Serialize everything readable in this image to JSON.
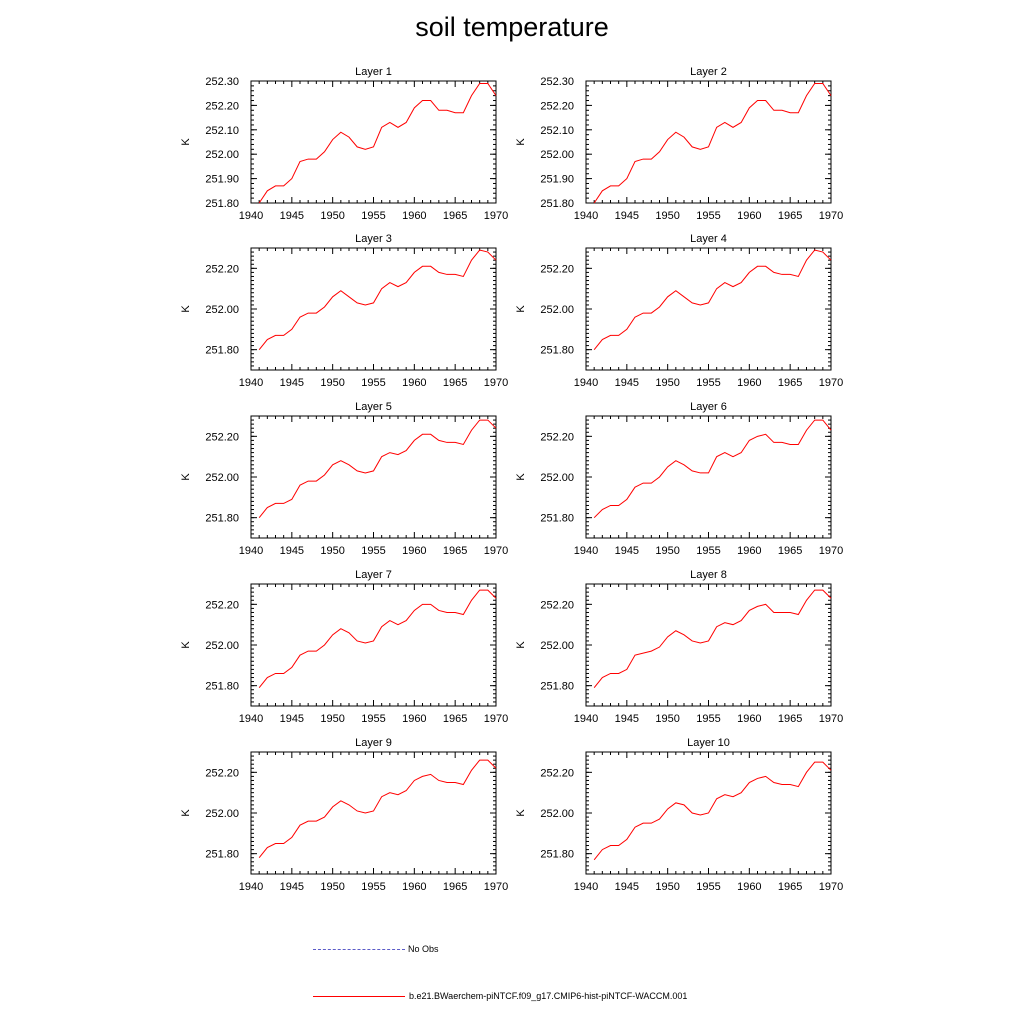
{
  "title": "soil temperature",
  "colors": {
    "model_line": "#ff0000",
    "obs_line": "#5b5bc8",
    "axis": "#000000"
  },
  "legend": {
    "obs_label": "No Obs",
    "model_label": "b.e21.BWaerchem-piNTCF.f09_g17.CMIP6-hist-piNTCF-WACCM.001"
  },
  "chart_data": [
    {
      "type": "line",
      "title": "Layer 1",
      "xlabel": "",
      "ylabel": "K",
      "xlim": [
        1940,
        1970
      ],
      "ylim": [
        251.8,
        252.3
      ],
      "yticks": [
        "251.80",
        "251.90",
        "252.00",
        "252.10",
        "252.20",
        "252.30"
      ],
      "xticks": [
        "1940",
        "1945",
        "1950",
        "1955",
        "1960",
        "1965",
        "1970"
      ],
      "x": [
        1941,
        1942,
        1943,
        1944,
        1945,
        1946,
        1947,
        1948,
        1949,
        1950,
        1951,
        1952,
        1953,
        1954,
        1955,
        1956,
        1957,
        1958,
        1959,
        1960,
        1961,
        1962,
        1963,
        1964,
        1965,
        1966,
        1967,
        1968,
        1969,
        1970
      ],
      "series": [
        {
          "values": [
            251.8,
            251.85,
            251.87,
            251.87,
            251.9,
            251.97,
            251.98,
            251.98,
            252.01,
            252.06,
            252.09,
            252.07,
            252.03,
            252.02,
            252.03,
            252.11,
            252.13,
            252.11,
            252.13,
            252.19,
            252.22,
            252.22,
            252.18,
            252.18,
            252.17,
            252.17,
            252.24,
            252.29,
            252.29,
            252.24
          ]
        }
      ]
    },
    {
      "type": "line",
      "title": "Layer 2",
      "xlabel": "",
      "ylabel": "K",
      "xlim": [
        1940,
        1970
      ],
      "ylim": [
        251.8,
        252.3
      ],
      "yticks": [
        "251.80",
        "251.90",
        "252.00",
        "252.10",
        "252.20",
        "252.30"
      ],
      "xticks": [
        "1940",
        "1945",
        "1950",
        "1955",
        "1960",
        "1965",
        "1970"
      ],
      "x": [
        1941,
        1942,
        1943,
        1944,
        1945,
        1946,
        1947,
        1948,
        1949,
        1950,
        1951,
        1952,
        1953,
        1954,
        1955,
        1956,
        1957,
        1958,
        1959,
        1960,
        1961,
        1962,
        1963,
        1964,
        1965,
        1966,
        1967,
        1968,
        1969,
        1970
      ],
      "series": [
        {
          "values": [
            251.8,
            251.85,
            251.87,
            251.87,
            251.9,
            251.97,
            251.98,
            251.98,
            252.01,
            252.06,
            252.09,
            252.07,
            252.03,
            252.02,
            252.03,
            252.11,
            252.13,
            252.11,
            252.13,
            252.19,
            252.22,
            252.22,
            252.18,
            252.18,
            252.17,
            252.17,
            252.24,
            252.29,
            252.29,
            252.24
          ]
        }
      ]
    },
    {
      "type": "line",
      "title": "Layer 3",
      "xlabel": "",
      "ylabel": "K",
      "xlim": [
        1940,
        1970
      ],
      "ylim": [
        251.7,
        252.3
      ],
      "yticks": [
        "251.80",
        "252.00",
        "252.20"
      ],
      "xticks": [
        "1940",
        "1945",
        "1950",
        "1955",
        "1960",
        "1965",
        "1970"
      ],
      "x": [
        1941,
        1942,
        1943,
        1944,
        1945,
        1946,
        1947,
        1948,
        1949,
        1950,
        1951,
        1952,
        1953,
        1954,
        1955,
        1956,
        1957,
        1958,
        1959,
        1960,
        1961,
        1962,
        1963,
        1964,
        1965,
        1966,
        1967,
        1968,
        1969,
        1970
      ],
      "series": [
        {
          "values": [
            251.8,
            251.85,
            251.87,
            251.87,
            251.9,
            251.96,
            251.98,
            251.98,
            252.01,
            252.06,
            252.09,
            252.06,
            252.03,
            252.02,
            252.03,
            252.1,
            252.13,
            252.11,
            252.13,
            252.18,
            252.21,
            252.21,
            252.18,
            252.17,
            252.17,
            252.16,
            252.24,
            252.29,
            252.28,
            252.24
          ]
        }
      ]
    },
    {
      "type": "line",
      "title": "Layer 4",
      "xlabel": "",
      "ylabel": "K",
      "xlim": [
        1940,
        1970
      ],
      "ylim": [
        251.7,
        252.3
      ],
      "yticks": [
        "251.80",
        "252.00",
        "252.20"
      ],
      "xticks": [
        "1940",
        "1945",
        "1950",
        "1955",
        "1960",
        "1965",
        "1970"
      ],
      "x": [
        1941,
        1942,
        1943,
        1944,
        1945,
        1946,
        1947,
        1948,
        1949,
        1950,
        1951,
        1952,
        1953,
        1954,
        1955,
        1956,
        1957,
        1958,
        1959,
        1960,
        1961,
        1962,
        1963,
        1964,
        1965,
        1966,
        1967,
        1968,
        1969,
        1970
      ],
      "series": [
        {
          "values": [
            251.8,
            251.85,
            251.87,
            251.87,
            251.9,
            251.96,
            251.98,
            251.98,
            252.01,
            252.06,
            252.09,
            252.06,
            252.03,
            252.02,
            252.03,
            252.1,
            252.13,
            252.11,
            252.13,
            252.18,
            252.21,
            252.21,
            252.18,
            252.17,
            252.17,
            252.16,
            252.24,
            252.29,
            252.28,
            252.24
          ]
        }
      ]
    },
    {
      "type": "line",
      "title": "Layer 5",
      "xlabel": "",
      "ylabel": "K",
      "xlim": [
        1940,
        1970
      ],
      "ylim": [
        251.7,
        252.3
      ],
      "yticks": [
        "251.80",
        "252.00",
        "252.20"
      ],
      "xticks": [
        "1940",
        "1945",
        "1950",
        "1955",
        "1960",
        "1965",
        "1970"
      ],
      "x": [
        1941,
        1942,
        1943,
        1944,
        1945,
        1946,
        1947,
        1948,
        1949,
        1950,
        1951,
        1952,
        1953,
        1954,
        1955,
        1956,
        1957,
        1958,
        1959,
        1960,
        1961,
        1962,
        1963,
        1964,
        1965,
        1966,
        1967,
        1968,
        1969,
        1970
      ],
      "series": [
        {
          "values": [
            251.8,
            251.85,
            251.87,
            251.87,
            251.89,
            251.96,
            251.98,
            251.98,
            252.01,
            252.06,
            252.08,
            252.06,
            252.03,
            252.02,
            252.03,
            252.1,
            252.12,
            252.11,
            252.13,
            252.18,
            252.21,
            252.21,
            252.18,
            252.17,
            252.17,
            252.16,
            252.23,
            252.28,
            252.28,
            252.24
          ]
        }
      ]
    },
    {
      "type": "line",
      "title": "Layer 6",
      "xlabel": "",
      "ylabel": "K",
      "xlim": [
        1940,
        1970
      ],
      "ylim": [
        251.7,
        252.3
      ],
      "yticks": [
        "251.80",
        "252.00",
        "252.20"
      ],
      "xticks": [
        "1940",
        "1945",
        "1950",
        "1955",
        "1960",
        "1965",
        "1970"
      ],
      "x": [
        1941,
        1942,
        1943,
        1944,
        1945,
        1946,
        1947,
        1948,
        1949,
        1950,
        1951,
        1952,
        1953,
        1954,
        1955,
        1956,
        1957,
        1958,
        1959,
        1960,
        1961,
        1962,
        1963,
        1964,
        1965,
        1966,
        1967,
        1968,
        1969,
        1970
      ],
      "series": [
        {
          "values": [
            251.8,
            251.84,
            251.86,
            251.86,
            251.89,
            251.95,
            251.97,
            251.97,
            252.0,
            252.05,
            252.08,
            252.06,
            252.03,
            252.02,
            252.02,
            252.1,
            252.12,
            252.1,
            252.12,
            252.18,
            252.2,
            252.21,
            252.17,
            252.17,
            252.16,
            252.16,
            252.23,
            252.28,
            252.28,
            252.23
          ]
        }
      ]
    },
    {
      "type": "line",
      "title": "Layer 7",
      "xlabel": "",
      "ylabel": "K",
      "xlim": [
        1940,
        1970
      ],
      "ylim": [
        251.7,
        252.3
      ],
      "yticks": [
        "251.80",
        "252.00",
        "252.20"
      ],
      "xticks": [
        "1940",
        "1945",
        "1950",
        "1955",
        "1960",
        "1965",
        "1970"
      ],
      "x": [
        1941,
        1942,
        1943,
        1944,
        1945,
        1946,
        1947,
        1948,
        1949,
        1950,
        1951,
        1952,
        1953,
        1954,
        1955,
        1956,
        1957,
        1958,
        1959,
        1960,
        1961,
        1962,
        1963,
        1964,
        1965,
        1966,
        1967,
        1968,
        1969,
        1970
      ],
      "series": [
        {
          "values": [
            251.79,
            251.84,
            251.86,
            251.86,
            251.89,
            251.95,
            251.97,
            251.97,
            252.0,
            252.05,
            252.08,
            252.06,
            252.02,
            252.01,
            252.02,
            252.09,
            252.12,
            252.1,
            252.12,
            252.17,
            252.2,
            252.2,
            252.17,
            252.16,
            252.16,
            252.15,
            252.22,
            252.27,
            252.27,
            252.23
          ]
        }
      ]
    },
    {
      "type": "line",
      "title": "Layer 8",
      "xlabel": "",
      "ylabel": "K",
      "xlim": [
        1940,
        1970
      ],
      "ylim": [
        251.7,
        252.3
      ],
      "yticks": [
        "251.80",
        "252.00",
        "252.20"
      ],
      "xticks": [
        "1940",
        "1945",
        "1950",
        "1955",
        "1960",
        "1965",
        "1970"
      ],
      "x": [
        1941,
        1942,
        1943,
        1944,
        1945,
        1946,
        1947,
        1948,
        1949,
        1950,
        1951,
        1952,
        1953,
        1954,
        1955,
        1956,
        1957,
        1958,
        1959,
        1960,
        1961,
        1962,
        1963,
        1964,
        1965,
        1966,
        1967,
        1968,
        1969,
        1970
      ],
      "series": [
        {
          "values": [
            251.79,
            251.84,
            251.86,
            251.86,
            251.88,
            251.95,
            251.96,
            251.97,
            251.99,
            252.04,
            252.07,
            252.05,
            252.02,
            252.01,
            252.02,
            252.09,
            252.11,
            252.1,
            252.12,
            252.17,
            252.19,
            252.2,
            252.16,
            252.16,
            252.16,
            252.15,
            252.22,
            252.27,
            252.27,
            252.23
          ]
        }
      ]
    },
    {
      "type": "line",
      "title": "Layer 9",
      "xlabel": "",
      "ylabel": "K",
      "xlim": [
        1940,
        1970
      ],
      "ylim": [
        251.7,
        252.3
      ],
      "yticks": [
        "251.80",
        "252.00",
        "252.20"
      ],
      "xticks": [
        "1940",
        "1945",
        "1950",
        "1955",
        "1960",
        "1965",
        "1970"
      ],
      "x": [
        1941,
        1942,
        1943,
        1944,
        1945,
        1946,
        1947,
        1948,
        1949,
        1950,
        1951,
        1952,
        1953,
        1954,
        1955,
        1956,
        1957,
        1958,
        1959,
        1960,
        1961,
        1962,
        1963,
        1964,
        1965,
        1966,
        1967,
        1968,
        1969,
        1970
      ],
      "series": [
        {
          "values": [
            251.78,
            251.83,
            251.85,
            251.85,
            251.88,
            251.94,
            251.96,
            251.96,
            251.98,
            252.03,
            252.06,
            252.04,
            252.01,
            252.0,
            252.01,
            252.08,
            252.1,
            252.09,
            252.11,
            252.16,
            252.18,
            252.19,
            252.16,
            252.15,
            252.15,
            252.14,
            252.21,
            252.26,
            252.26,
            252.22
          ]
        }
      ]
    },
    {
      "type": "line",
      "title": "Layer 10",
      "xlabel": "",
      "ylabel": "K",
      "xlim": [
        1940,
        1970
      ],
      "ylim": [
        251.7,
        252.3
      ],
      "yticks": [
        "251.80",
        "252.00",
        "252.20"
      ],
      "xticks": [
        "1940",
        "1945",
        "1950",
        "1955",
        "1960",
        "1965",
        "1970"
      ],
      "x": [
        1941,
        1942,
        1943,
        1944,
        1945,
        1946,
        1947,
        1948,
        1949,
        1950,
        1951,
        1952,
        1953,
        1954,
        1955,
        1956,
        1957,
        1958,
        1959,
        1960,
        1961,
        1962,
        1963,
        1964,
        1965,
        1966,
        1967,
        1968,
        1969,
        1970
      ],
      "series": [
        {
          "values": [
            251.77,
            251.82,
            251.84,
            251.84,
            251.87,
            251.93,
            251.95,
            251.95,
            251.97,
            252.02,
            252.05,
            252.04,
            252.0,
            251.99,
            252.0,
            252.07,
            252.09,
            252.08,
            252.1,
            252.15,
            252.17,
            252.18,
            252.15,
            252.14,
            252.14,
            252.13,
            252.2,
            252.25,
            252.25,
            252.21
          ]
        }
      ]
    }
  ]
}
